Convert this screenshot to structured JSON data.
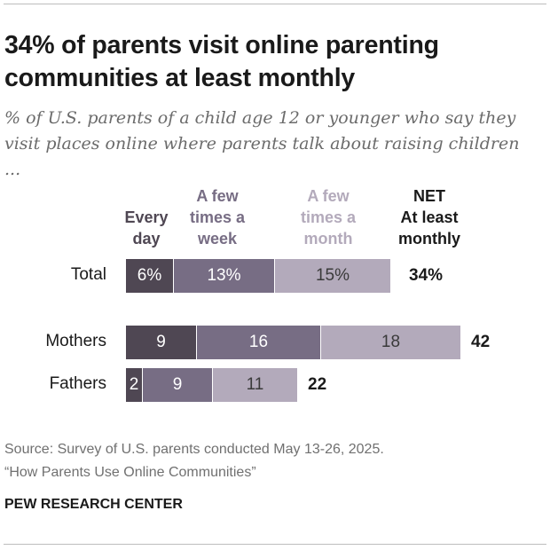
{
  "title": "34% of parents visit online parenting communities at least monthly",
  "subtitle": "% of U.S. parents of a child age 12 or younger who say they visit places online where parents talk about raising children ...",
  "source_line1": "Source: Survey of U.S. parents conducted May 13-26, 2025.",
  "source_line2": "“How Parents Use Online Communities”",
  "brand": "PEW RESEARCH CENTER",
  "colors": {
    "every_day": "#4f4753",
    "few_week": "#776d84",
    "few_month": "#b3aabb",
    "net_header": "#1a1a1a"
  },
  "chart_data": {
    "type": "bar",
    "orientation": "horizontal",
    "stacked": true,
    "headers": {
      "every_day": [
        "Every",
        "day"
      ],
      "few_week": [
        "A few",
        "times a",
        "week"
      ],
      "few_month": [
        "A few",
        "times a",
        "month"
      ],
      "net": [
        "NET",
        "At least",
        "monthly"
      ]
    },
    "categories": [
      "Total",
      "Mothers",
      "Fathers"
    ],
    "series": [
      {
        "name": "Every day",
        "values": [
          6,
          9,
          2
        ],
        "labels": [
          "6%",
          "9",
          "2"
        ]
      },
      {
        "name": "A few times a week",
        "values": [
          13,
          16,
          9
        ],
        "labels": [
          "13%",
          "16",
          "9"
        ]
      },
      {
        "name": "A few times a month",
        "values": [
          15,
          18,
          11
        ],
        "labels": [
          "15%",
          "18",
          "11"
        ]
      }
    ],
    "net": {
      "name": "NET At least monthly",
      "values": [
        34,
        42,
        22
      ],
      "labels": [
        "34%",
        "42",
        "22"
      ]
    }
  }
}
